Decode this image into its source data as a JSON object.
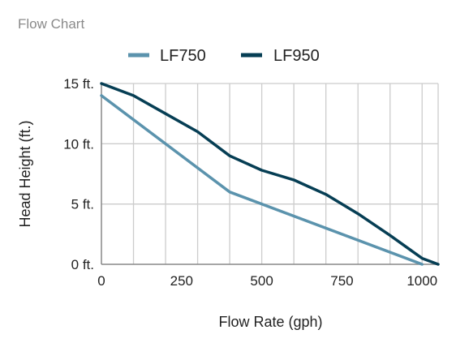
{
  "chart_data": {
    "type": "line",
    "title": "Flow Chart",
    "xlabel": "Flow Rate (gph)",
    "ylabel": "Head Height (ft.)",
    "xlim": [
      0,
      1050
    ],
    "ylim": [
      0,
      15
    ],
    "x_ticks": [
      {
        "value": 0,
        "label": "0"
      },
      {
        "value": 250,
        "label": "250"
      },
      {
        "value": 500,
        "label": "500"
      },
      {
        "value": 750,
        "label": "750"
      },
      {
        "value": 1000,
        "label": "1000"
      }
    ],
    "y_ticks": [
      {
        "value": 0,
        "label": "0 ft."
      },
      {
        "value": 5,
        "label": "5 ft."
      },
      {
        "value": 10,
        "label": "10 ft."
      },
      {
        "value": 15,
        "label": "15 ft."
      }
    ],
    "x_grid_step": 100,
    "grid": true,
    "legend_position": "top",
    "series": [
      {
        "name": "LF750",
        "color": "#5b93ad",
        "points": [
          [
            0,
            14
          ],
          [
            400,
            6
          ],
          [
            1000,
            0
          ]
        ]
      },
      {
        "name": "LF950",
        "color": "#063e54",
        "points": [
          [
            0,
            15
          ],
          [
            100,
            14
          ],
          [
            200,
            12.5
          ],
          [
            300,
            11
          ],
          [
            400,
            9
          ],
          [
            500,
            7.8
          ],
          [
            600,
            7
          ],
          [
            700,
            5.8
          ],
          [
            800,
            4.2
          ],
          [
            900,
            2.4
          ],
          [
            1000,
            0.5
          ],
          [
            1050,
            0
          ]
        ]
      }
    ]
  }
}
